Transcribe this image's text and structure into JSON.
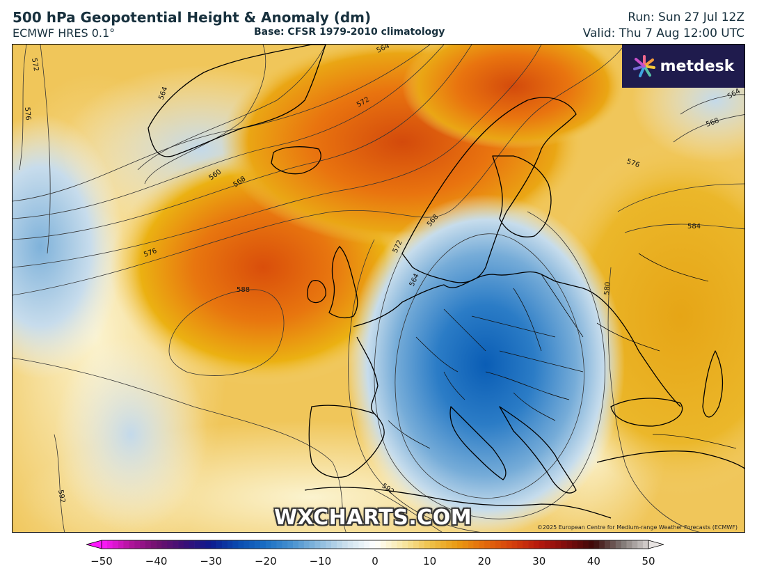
{
  "header": {
    "title": "500 hPa Geopotential Height & Anomaly (dm)",
    "model": "ECMWF HRES 0.1°",
    "base": "Base: CFSR 1979-2010 climatology",
    "run": "Run: Sun 27 Jul 12Z",
    "valid": "Valid: Thu 7 Aug 12:00 UTC"
  },
  "brand": {
    "logo_text": "metdesk",
    "watermark": "WXCHARTS.COM",
    "copyright": "©2025 European Centre for Medium-range Weather Forecasts (ECMWF)"
  },
  "map": {
    "contour_labels": [
      "572",
      "576",
      "564",
      "564",
      "572",
      "560",
      "568",
      "576",
      "588",
      "568",
      "572",
      "564",
      "580",
      "576",
      "584",
      "568",
      "564",
      "592",
      "592"
    ],
    "colors": {
      "strong_negative": "#0a5db5",
      "negative": "#5da2d5",
      "weak_negative": "#cfe3ef",
      "neutral": "#fbf7dc",
      "weak_positive": "#f4d37a",
      "positive": "#ebb112",
      "strong_positive": "#e56a0d",
      "very_strong_positive": "#d94e0b",
      "coastline": "#000000",
      "contour": "#333333"
    }
  },
  "colorbar": {
    "ticks": [
      "−50",
      "−40",
      "−30",
      "−20",
      "−10",
      "0",
      "10",
      "20",
      "30",
      "40",
      "50"
    ],
    "stops": [
      {
        "v": -50,
        "c": "#ff18ff"
      },
      {
        "v": -45,
        "c": "#b4149e"
      },
      {
        "v": -40,
        "c": "#70126e"
      },
      {
        "v": -35,
        "c": "#3c0f75"
      },
      {
        "v": -30,
        "c": "#0c1a8f"
      },
      {
        "v": -25,
        "c": "#0a4bb0"
      },
      {
        "v": -20,
        "c": "#1a6fc4"
      },
      {
        "v": -15,
        "c": "#4a93d0"
      },
      {
        "v": -10,
        "c": "#8fbcde"
      },
      {
        "v": -5,
        "c": "#cfe2ee"
      },
      {
        "v": 0,
        "c": "#ffffff"
      },
      {
        "v": 5,
        "c": "#f8e8a6"
      },
      {
        "v": 10,
        "c": "#efc24a"
      },
      {
        "v": 15,
        "c": "#e99a12"
      },
      {
        "v": 20,
        "c": "#e46a0c"
      },
      {
        "v": 25,
        "c": "#d4400c"
      },
      {
        "v": 30,
        "c": "#b5180d"
      },
      {
        "v": 35,
        "c": "#7e0c0c"
      },
      {
        "v": 40,
        "c": "#3c0808"
      },
      {
        "v": 45,
        "c": "#7c7370"
      },
      {
        "v": 50,
        "c": "#d8d3d1"
      }
    ]
  }
}
